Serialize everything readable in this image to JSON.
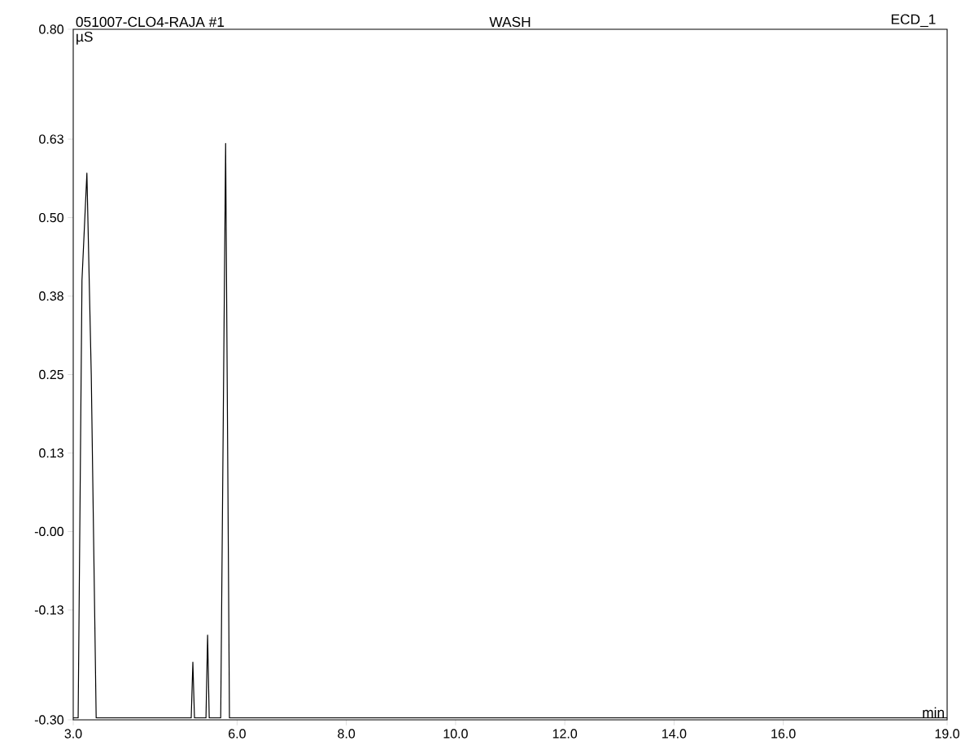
{
  "chart_data": {
    "type": "line",
    "title": "051007-CLO4-RAJA #1",
    "subtitle": "WASH",
    "annotations": [
      "ECD_1"
    ],
    "xlabel": "min",
    "ylabel": "µS",
    "series": [
      {
        "color": "#000000",
        "x": [
          3.0,
          3.09,
          3.16,
          3.25,
          3.33,
          3.42,
          5.16,
          5.19,
          5.22,
          5.43,
          5.46,
          5.49,
          5.7,
          5.79,
          5.86,
          19.0
        ],
        "values": [
          -0.297,
          -0.297,
          0.4,
          0.571,
          0.25,
          -0.297,
          -0.297,
          -0.208,
          -0.297,
          -0.297,
          -0.165,
          -0.297,
          -0.297,
          0.618,
          -0.297,
          -0.297
        ]
      }
    ],
    "xlim": [
      3.0,
      19.0
    ],
    "xticks": [
      {
        "value": 3,
        "label": "3.0"
      },
      {
        "value": 6,
        "label": "6.0"
      },
      {
        "value": 8,
        "label": "8.0"
      },
      {
        "value": 10,
        "label": "10.0"
      },
      {
        "value": 12,
        "label": "12.0"
      },
      {
        "value": 14,
        "label": "14.0"
      },
      {
        "value": 16,
        "label": "16.0"
      },
      {
        "value": 19,
        "label": "19.0"
      }
    ],
    "ylim": [
      -0.3,
      0.8
    ],
    "yticks": [
      {
        "value": -0.3,
        "label": "-0.30"
      },
      {
        "value": -0.125,
        "label": "-0.13"
      },
      {
        "value": 0,
        "label": "-0.00"
      },
      {
        "value": 0.125,
        "label": "0.13"
      },
      {
        "value": 0.25,
        "label": "0.25"
      },
      {
        "value": 0.375,
        "label": "0.38"
      },
      {
        "value": 0.5,
        "label": "0.50"
      },
      {
        "value": 0.625,
        "label": "0.63"
      },
      {
        "value": 0.8,
        "label": "0.80"
      }
    ],
    "marker": "none",
    "line_style": "solid"
  }
}
